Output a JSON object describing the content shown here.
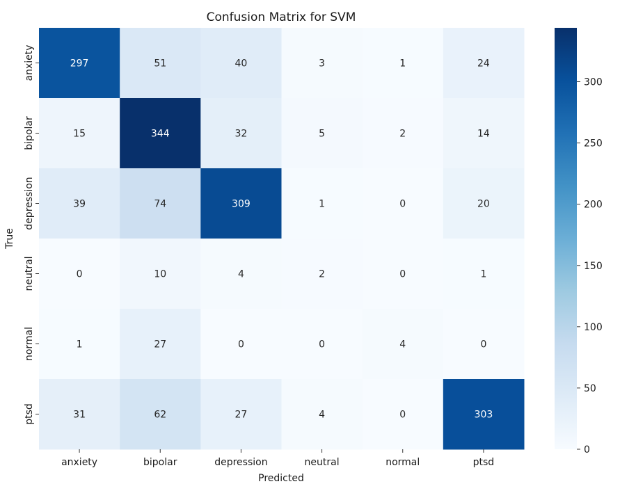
{
  "chart_data": {
    "type": "heatmap",
    "title": "Confusion Matrix for SVM",
    "xlabel": "Predicted",
    "ylabel": "True",
    "x_categories": [
      "anxiety",
      "bipolar",
      "depression",
      "neutral",
      "normal",
      "ptsd"
    ],
    "y_categories": [
      "anxiety",
      "bipolar",
      "depression",
      "neutral",
      "normal",
      "ptsd"
    ],
    "values": [
      [
        297,
        51,
        40,
        3,
        1,
        24
      ],
      [
        15,
        344,
        32,
        5,
        2,
        14
      ],
      [
        39,
        74,
        309,
        1,
        0,
        20
      ],
      [
        0,
        10,
        4,
        2,
        0,
        1
      ],
      [
        1,
        27,
        0,
        0,
        4,
        0
      ],
      [
        31,
        62,
        27,
        4,
        0,
        303
      ]
    ],
    "colormap": "Blues",
    "colorbar": {
      "range": [
        0,
        344
      ],
      "ticks": [
        "0",
        "50",
        "100",
        "150",
        "200",
        "250",
        "300"
      ]
    },
    "grid": false
  }
}
